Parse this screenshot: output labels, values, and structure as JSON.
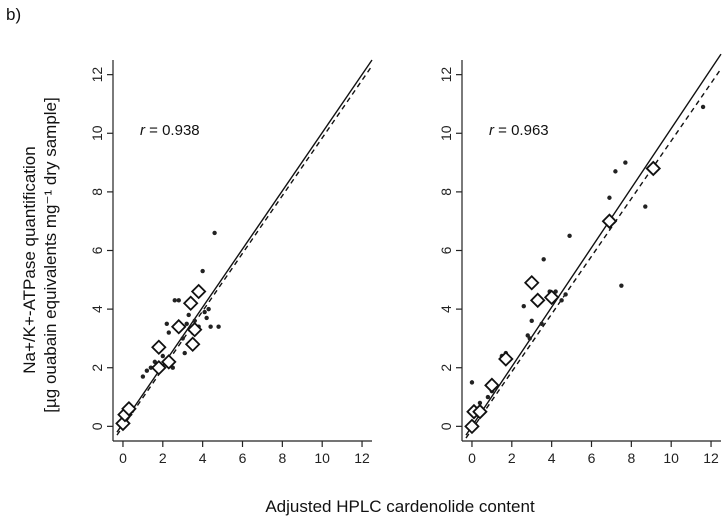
{
  "panel_label": "b)",
  "ylabel_line1": "Na+/K+-ATPase quantification",
  "ylabel_line2": "[µg ouabain equivalents mg⁻¹ dry sample]",
  "xlabel": "Adjusted HPLC cardenolide content",
  "chart_data": [
    {
      "type": "scatter",
      "xlim": [
        -0.5,
        12.5
      ],
      "ylim": [
        -0.5,
        12.5
      ],
      "xticks": [
        0,
        2,
        4,
        6,
        8,
        10,
        12
      ],
      "yticks": [
        0,
        2,
        4,
        6,
        8,
        10,
        12
      ],
      "annotation": {
        "italic": "r",
        "text": " = 0.938"
      },
      "grid": false,
      "solid_line": [
        [
          -0.3,
          -0.2
        ],
        [
          12.5,
          12.5
        ]
      ],
      "dashed_line": [
        [
          -0.3,
          -0.3
        ],
        [
          12.5,
          12.3
        ]
      ],
      "points": [
        [
          0.1,
          0.1
        ],
        [
          0.2,
          0.3
        ],
        [
          0.3,
          0.6
        ],
        [
          1.0,
          1.7
        ],
        [
          1.2,
          1.9
        ],
        [
          1.4,
          2.0
        ],
        [
          1.6,
          2.2
        ],
        [
          1.8,
          2.0
        ],
        [
          2.0,
          2.4
        ],
        [
          2.2,
          3.5
        ],
        [
          2.3,
          3.2
        ],
        [
          2.5,
          2.0
        ],
        [
          2.6,
          4.3
        ],
        [
          2.8,
          4.3
        ],
        [
          3.0,
          3.0
        ],
        [
          3.1,
          2.5
        ],
        [
          3.2,
          3.5
        ],
        [
          3.3,
          3.8
        ],
        [
          3.5,
          3.2
        ],
        [
          3.6,
          3.6
        ],
        [
          3.8,
          3.4
        ],
        [
          4.0,
          5.3
        ],
        [
          4.1,
          3.9
        ],
        [
          4.2,
          3.7
        ],
        [
          4.3,
          4.0
        ],
        [
          4.4,
          3.4
        ],
        [
          4.6,
          6.6
        ],
        [
          4.8,
          3.4
        ]
      ],
      "diamonds": [
        [
          0.0,
          0.1
        ],
        [
          0.1,
          0.4
        ],
        [
          0.3,
          0.6
        ],
        [
          1.8,
          2.0
        ],
        [
          1.8,
          2.7
        ],
        [
          2.3,
          2.2
        ],
        [
          2.8,
          3.4
        ],
        [
          3.4,
          4.2
        ],
        [
          3.5,
          2.8
        ],
        [
          3.6,
          3.3
        ],
        [
          3.8,
          4.6
        ]
      ]
    },
    {
      "type": "scatter",
      "xlim": [
        -0.5,
        12.5
      ],
      "ylim": [
        -0.5,
        12.5
      ],
      "xticks": [
        0,
        2,
        4,
        6,
        8,
        10,
        12
      ],
      "yticks": [
        0,
        2,
        4,
        6,
        8,
        10,
        12
      ],
      "annotation": {
        "italic": "r",
        "text": " = 0.963"
      },
      "grid": false,
      "solid_line": [
        [
          -0.3,
          -0.3
        ],
        [
          12.5,
          12.7
        ]
      ],
      "dashed_line": [
        [
          -0.3,
          -0.4
        ],
        [
          12.5,
          12.2
        ]
      ],
      "points": [
        [
          0.0,
          1.5
        ],
        [
          0.2,
          0.6
        ],
        [
          0.4,
          0.8
        ],
        [
          0.8,
          1.0
        ],
        [
          1.0,
          1.2
        ],
        [
          1.5,
          2.4
        ],
        [
          1.7,
          2.5
        ],
        [
          2.6,
          4.1
        ],
        [
          2.8,
          3.1
        ],
        [
          2.9,
          3.0
        ],
        [
          3.0,
          3.6
        ],
        [
          3.2,
          4.9
        ],
        [
          3.4,
          4.3
        ],
        [
          3.5,
          3.5
        ],
        [
          3.6,
          5.7
        ],
        [
          3.9,
          4.6
        ],
        [
          4.2,
          4.6
        ],
        [
          4.5,
          4.3
        ],
        [
          4.7,
          4.5
        ],
        [
          4.9,
          6.5
        ],
        [
          6.9,
          7.8
        ],
        [
          7.2,
          8.7
        ],
        [
          7.5,
          4.8
        ],
        [
          7.7,
          9.0
        ],
        [
          8.7,
          7.5
        ],
        [
          11.6,
          10.9
        ]
      ],
      "diamonds": [
        [
          0.0,
          0.0
        ],
        [
          0.1,
          0.5
        ],
        [
          0.4,
          0.5
        ],
        [
          1.0,
          1.4
        ],
        [
          1.7,
          2.3
        ],
        [
          3.0,
          4.9
        ],
        [
          3.3,
          4.3
        ],
        [
          4.0,
          4.4
        ],
        [
          6.9,
          7.0
        ],
        [
          9.1,
          8.8
        ]
      ]
    }
  ]
}
